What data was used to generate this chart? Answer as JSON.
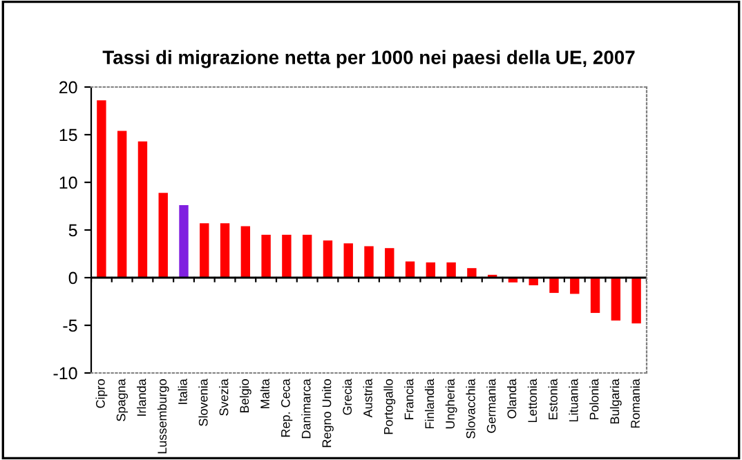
{
  "chart_data": {
    "type": "bar",
    "title": "Tassi di migrazione netta per 1000 nei paesi della UE, 2007",
    "categories": [
      "Cipro",
      "Spagna",
      "Irlanda",
      "Lussemburgo",
      "Italia",
      "Slovenia",
      "Svezia",
      "Belgio",
      "Malta",
      "Rep. Ceca",
      "Danimarca",
      "Regno Unito",
      "Grecia",
      "Austria",
      "Portogallo",
      "Francia",
      "Finlandia",
      "Ungheria",
      "Slovacchia",
      "Germania",
      "Olanda",
      "Lettonia",
      "Estonia",
      "Lituania",
      "Polonia",
      "Bulgaria",
      "Romania"
    ],
    "values": [
      18.6,
      15.4,
      14.3,
      8.9,
      7.6,
      5.7,
      5.7,
      5.4,
      4.5,
      4.5,
      4.5,
      3.9,
      3.6,
      3.3,
      3.1,
      1.7,
      1.6,
      1.6,
      1.0,
      0.3,
      -0.5,
      -0.8,
      -1.6,
      -1.7,
      -3.7,
      -4.5,
      -4.8
    ],
    "colors": [
      "#ff0000",
      "#ff0000",
      "#ff0000",
      "#ff0000",
      "#8020e0",
      "#ff0000",
      "#ff0000",
      "#ff0000",
      "#ff0000",
      "#ff0000",
      "#ff0000",
      "#ff0000",
      "#ff0000",
      "#ff0000",
      "#ff0000",
      "#ff0000",
      "#ff0000",
      "#ff0000",
      "#ff0000",
      "#ff0000",
      "#ff0000",
      "#ff0000",
      "#ff0000",
      "#ff0000",
      "#ff0000",
      "#ff0000",
      "#ff0000"
    ],
    "ylim": [
      -10,
      20
    ],
    "yticks": [
      -10,
      -5,
      0,
      5,
      10,
      15,
      20
    ]
  }
}
